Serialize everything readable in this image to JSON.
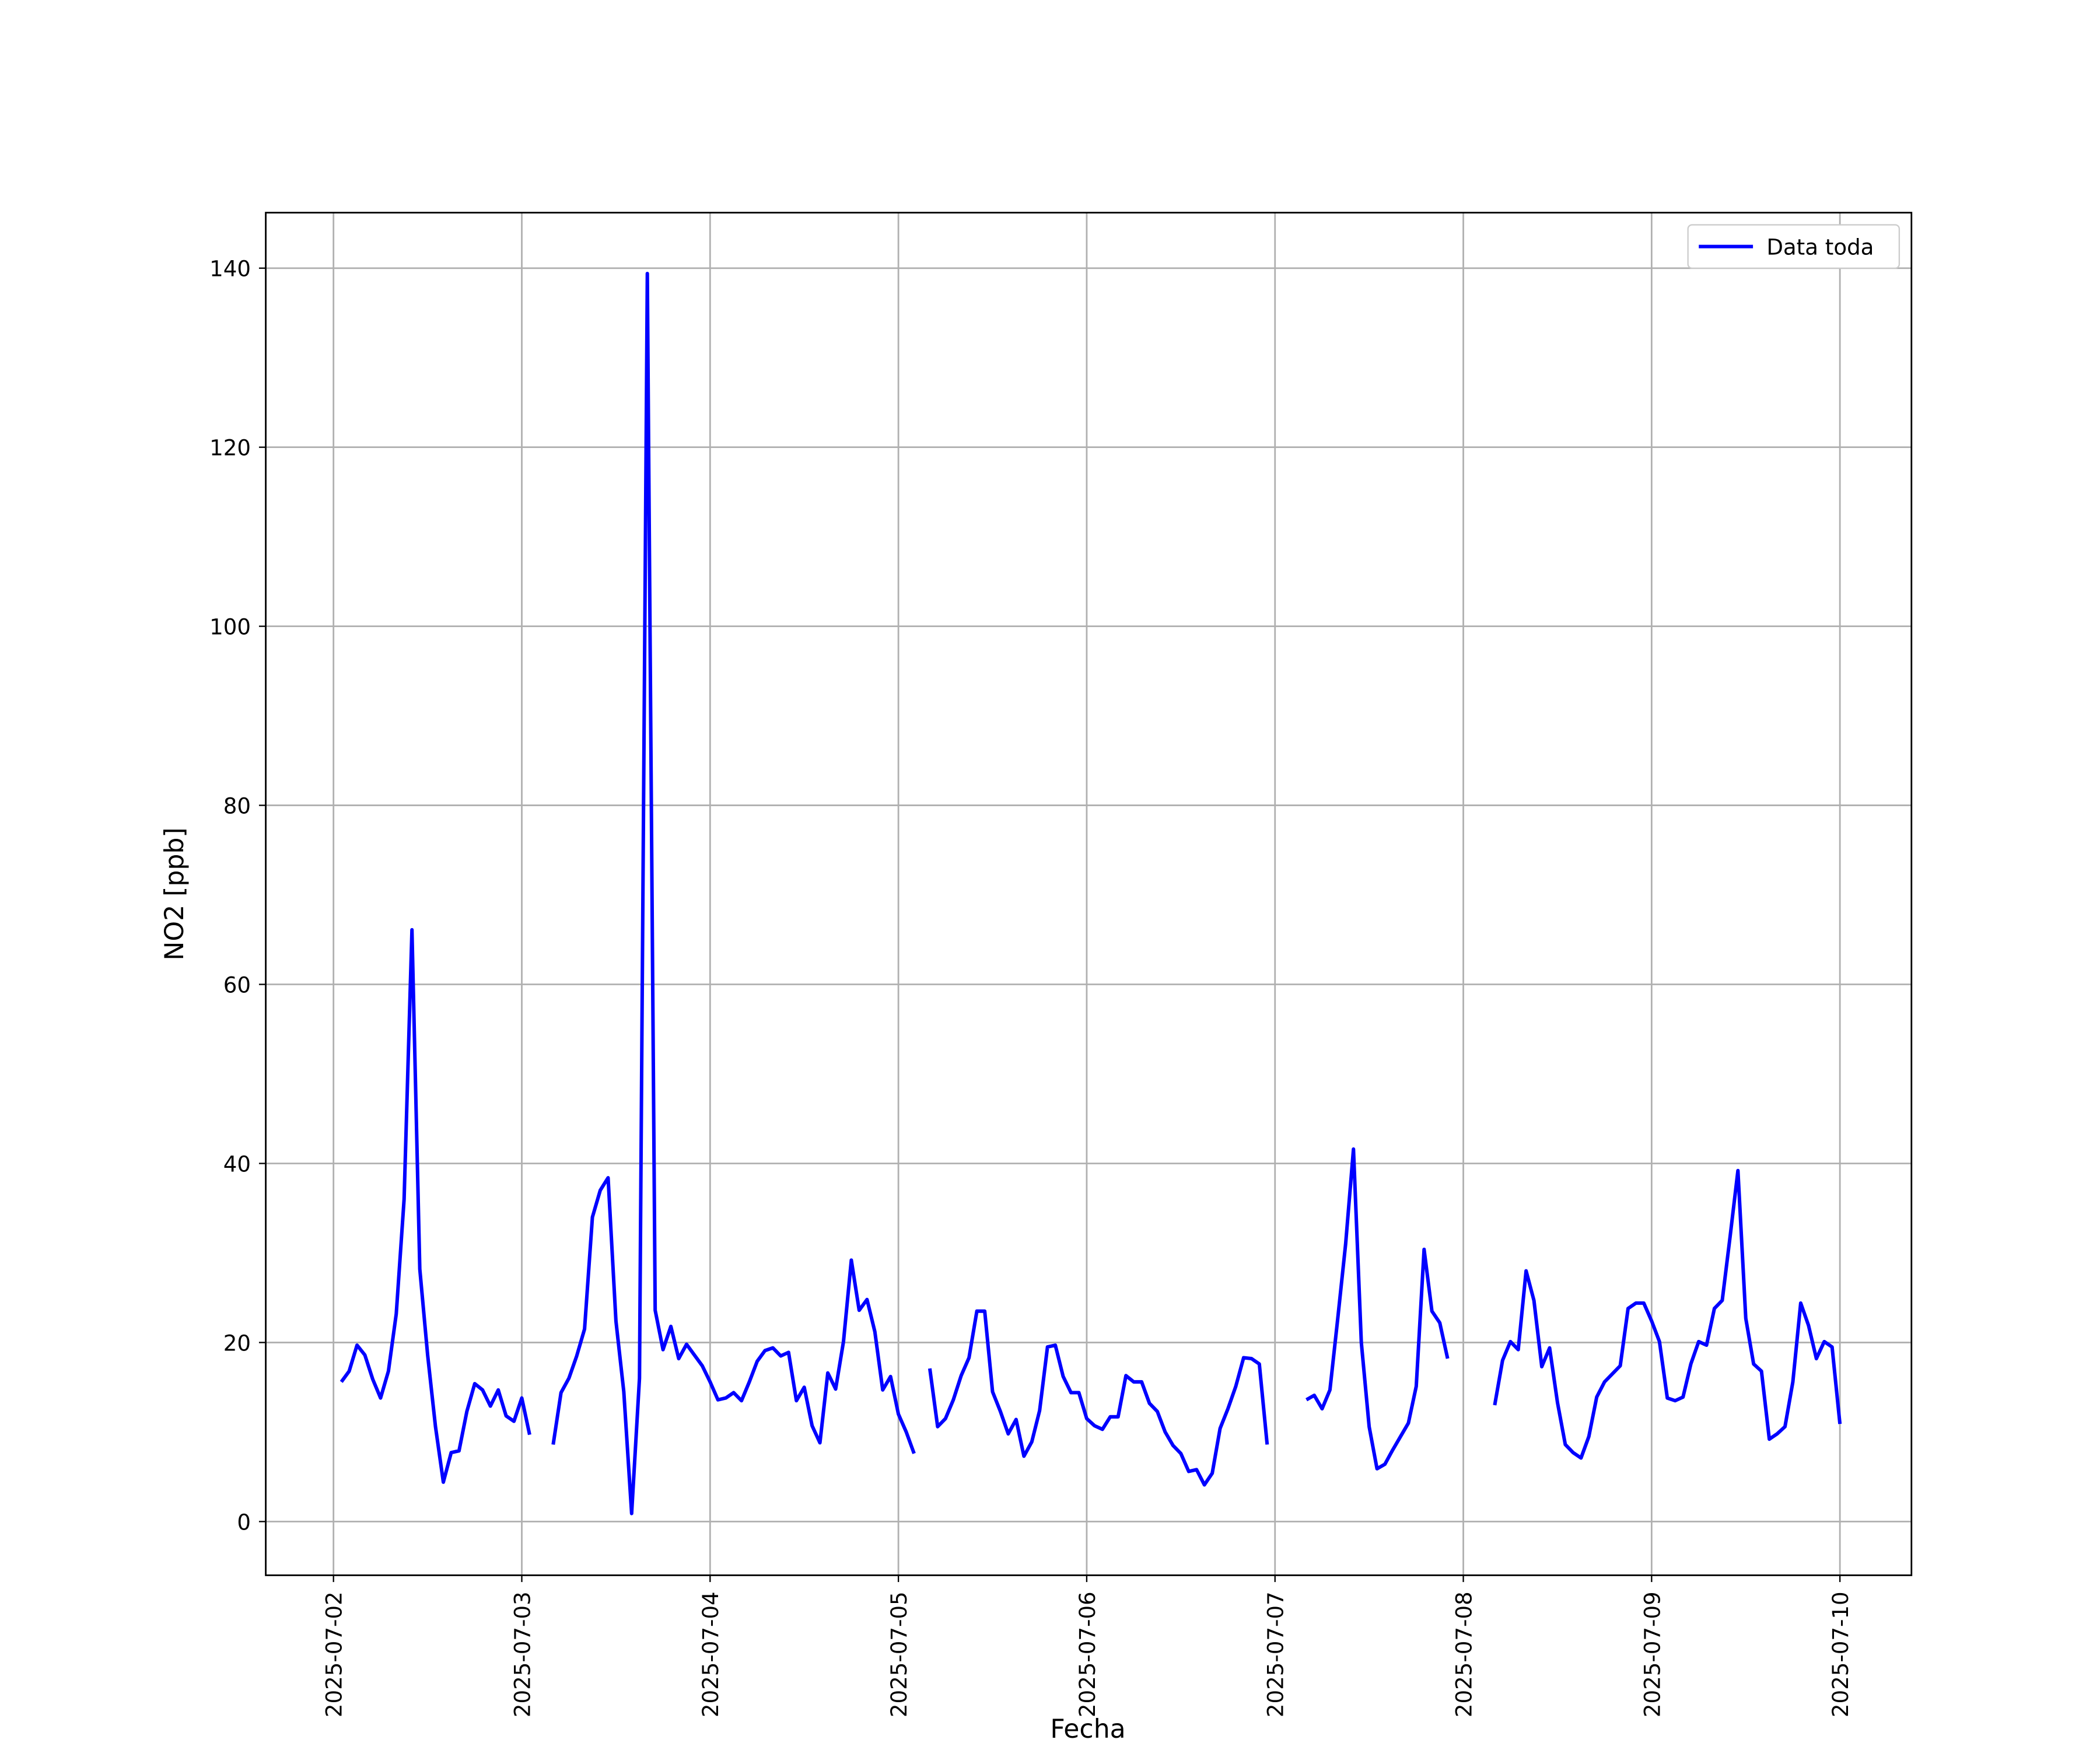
{
  "chart_data": {
    "type": "line",
    "xlabel": "Fecha",
    "ylabel": "NO2 [ppb]",
    "grid": true,
    "legend": "upper right",
    "xlim": [
      "2025-07-01 15:22",
      "2025-07-10 09:07"
    ],
    "xticks": [
      "2025-07-02",
      "2025-07-03",
      "2025-07-04",
      "2025-07-05",
      "2025-07-06",
      "2025-07-07",
      "2025-07-08",
      "2025-07-09",
      "2025-07-10"
    ],
    "ylim": [
      -6,
      146.2
    ],
    "yticks": [
      0,
      20,
      40,
      60,
      80,
      100,
      120,
      140
    ],
    "x": [
      "2025-07-02 01:00",
      "2025-07-02 02:00",
      "2025-07-02 03:00",
      "2025-07-02 04:00",
      "2025-07-02 05:00",
      "2025-07-02 06:00",
      "2025-07-02 07:00",
      "2025-07-02 08:00",
      "2025-07-02 09:00",
      "2025-07-02 10:00",
      "2025-07-02 11:00",
      "2025-07-02 12:00",
      "2025-07-02 13:00",
      "2025-07-02 14:00",
      "2025-07-02 15:00",
      "2025-07-02 16:00",
      "2025-07-02 17:00",
      "2025-07-02 18:00",
      "2025-07-02 19:00",
      "2025-07-02 20:00",
      "2025-07-02 21:00",
      "2025-07-02 22:00",
      "2025-07-02 23:00",
      "2025-07-03 00:00",
      "2025-07-03 01:00",
      "2025-07-03 02:00",
      "2025-07-03 03:00",
      "2025-07-03 04:00",
      "2025-07-03 05:00",
      "2025-07-03 06:00",
      "2025-07-03 07:00",
      "2025-07-03 08:00",
      "2025-07-03 09:00",
      "2025-07-03 10:00",
      "2025-07-03 11:00",
      "2025-07-03 12:00",
      "2025-07-03 13:00",
      "2025-07-03 14:00",
      "2025-07-03 15:00",
      "2025-07-03 16:00",
      "2025-07-03 17:00",
      "2025-07-03 18:00",
      "2025-07-03 19:00",
      "2025-07-03 20:00",
      "2025-07-03 21:00",
      "2025-07-03 22:00",
      "2025-07-03 23:00",
      "2025-07-04 00:00",
      "2025-07-04 01:00",
      "2025-07-04 02:00",
      "2025-07-04 03:00",
      "2025-07-04 04:00",
      "2025-07-04 05:00",
      "2025-07-04 06:00",
      "2025-07-04 07:00",
      "2025-07-04 08:00",
      "2025-07-04 09:00",
      "2025-07-04 10:00",
      "2025-07-04 11:00",
      "2025-07-04 12:00",
      "2025-07-04 13:00",
      "2025-07-04 14:00",
      "2025-07-04 15:00",
      "2025-07-04 16:00",
      "2025-07-04 17:00",
      "2025-07-04 18:00",
      "2025-07-04 19:00",
      "2025-07-04 20:00",
      "2025-07-04 21:00",
      "2025-07-04 22:00",
      "2025-07-04 23:00",
      "2025-07-05 00:00",
      "2025-07-05 01:00",
      "2025-07-05 02:00",
      "2025-07-05 03:00",
      "2025-07-05 04:00",
      "2025-07-05 05:00",
      "2025-07-05 06:00",
      "2025-07-05 07:00",
      "2025-07-05 08:00",
      "2025-07-05 09:00",
      "2025-07-05 10:00",
      "2025-07-05 11:00",
      "2025-07-05 12:00",
      "2025-07-05 13:00",
      "2025-07-05 14:00",
      "2025-07-05 15:00",
      "2025-07-05 16:00",
      "2025-07-05 17:00",
      "2025-07-05 18:00",
      "2025-07-05 19:00",
      "2025-07-05 20:00",
      "2025-07-05 21:00",
      "2025-07-05 22:00",
      "2025-07-05 23:00",
      "2025-07-06 00:00",
      "2025-07-06 01:00",
      "2025-07-06 02:00",
      "2025-07-06 03:00",
      "2025-07-06 04:00",
      "2025-07-06 05:00",
      "2025-07-06 06:00",
      "2025-07-06 07:00",
      "2025-07-06 08:00",
      "2025-07-06 09:00",
      "2025-07-06 10:00",
      "2025-07-06 11:00",
      "2025-07-06 12:00",
      "2025-07-06 13:00",
      "2025-07-06 14:00",
      "2025-07-06 15:00",
      "2025-07-06 16:00",
      "2025-07-06 17:00",
      "2025-07-06 18:00",
      "2025-07-06 19:00",
      "2025-07-06 20:00",
      "2025-07-06 21:00",
      "2025-07-06 22:00",
      "2025-07-06 23:00",
      "2025-07-07 00:00",
      "2025-07-07 01:00",
      "2025-07-07 02:00",
      "2025-07-07 03:00",
      "2025-07-07 04:00",
      "2025-07-07 05:00",
      "2025-07-07 06:00",
      "2025-07-07 07:00",
      "2025-07-07 08:00",
      "2025-07-07 09:00",
      "2025-07-07 10:00",
      "2025-07-07 11:00",
      "2025-07-07 12:00",
      "2025-07-07 13:00",
      "2025-07-07 14:00",
      "2025-07-07 15:00",
      "2025-07-07 16:00",
      "2025-07-07 17:00",
      "2025-07-07 18:00",
      "2025-07-07 19:00",
      "2025-07-07 20:00",
      "2025-07-07 21:00",
      "2025-07-07 22:00",
      "2025-07-07 23:00",
      "2025-07-08 00:00",
      "2025-07-08 01:00",
      "2025-07-08 02:00",
      "2025-07-08 03:00",
      "2025-07-08 04:00",
      "2025-07-08 05:00",
      "2025-07-08 06:00",
      "2025-07-08 07:00",
      "2025-07-08 08:00",
      "2025-07-08 09:00",
      "2025-07-08 10:00",
      "2025-07-08 11:00",
      "2025-07-08 12:00",
      "2025-07-08 13:00",
      "2025-07-08 14:00",
      "2025-07-08 15:00",
      "2025-07-08 16:00",
      "2025-07-08 17:00",
      "2025-07-08 18:00",
      "2025-07-08 19:00",
      "2025-07-08 20:00",
      "2025-07-08 21:00",
      "2025-07-08 22:00",
      "2025-07-08 23:00",
      "2025-07-09 00:00",
      "2025-07-09 01:00",
      "2025-07-09 02:00",
      "2025-07-09 03:00",
      "2025-07-09 04:00",
      "2025-07-09 05:00",
      "2025-07-09 06:00",
      "2025-07-09 07:00",
      "2025-07-09 08:00",
      "2025-07-09 09:00",
      "2025-07-09 10:00",
      "2025-07-09 11:00",
      "2025-07-09 12:00",
      "2025-07-09 13:00",
      "2025-07-09 14:00",
      "2025-07-09 15:00",
      "2025-07-09 16:00",
      "2025-07-09 17:00",
      "2025-07-09 18:00",
      "2025-07-09 19:00",
      "2025-07-09 20:00",
      "2025-07-09 21:00",
      "2025-07-09 22:00",
      "2025-07-09 23:00",
      "2025-07-10 00:00"
    ],
    "series": [
      {
        "name": "Data toda",
        "color": "#0000ff",
        "values": [
          15.6,
          16.8,
          19.7,
          18.6,
          15.9,
          13.8,
          16.8,
          23.2,
          36,
          66.1,
          28.2,
          18.6,
          10.6,
          4.4,
          7.7,
          7.9,
          12.3,
          15.4,
          14.7,
          12.9,
          14.7,
          11.8,
          11.2,
          13.8,
          9.7,
          null,
          null,
          8.6,
          14.4,
          16,
          18.5,
          21.5,
          34,
          37,
          38.4,
          22.4,
          14.5,
          0.9,
          16,
          139.4,
          23.6,
          19.2,
          21.8,
          18.2,
          19.8,
          18.6,
          17.4,
          15.6,
          13.6,
          13.8,
          14.4,
          13.5,
          15.6,
          17.9,
          19.1,
          19.4,
          18.5,
          18.9,
          13.5,
          15,
          10.7,
          8.8,
          16.6,
          14.8,
          20.1,
          29.2,
          23.6,
          24.8,
          21.2,
          14.7,
          16.2,
          12,
          10,
          7.6,
          null,
          17.1,
          10.6,
          11.5,
          13.6,
          16.3,
          18.3,
          23.5,
          23.5,
          14.5,
          12.3,
          9.8,
          11.4,
          7.3,
          8.9,
          12.4,
          19.5,
          19.7,
          16.2,
          14.4,
          14.4,
          11.5,
          10.7,
          10.3,
          11.7,
          11.7,
          16.3,
          15.6,
          15.6,
          13.2,
          12.3,
          10,
          8.5,
          7.6,
          5.6,
          5.8,
          4.1,
          5.4,
          10.4,
          12.6,
          15.1,
          18.3,
          18.2,
          17.6,
          8.6,
          null,
          null,
          null,
          null,
          13.6,
          14.1,
          12.6,
          14.7,
          22.7,
          31,
          41.6,
          20,
          10.6,
          5.9,
          6.4,
          8,
          9.5,
          11,
          15.1,
          30.4,
          23.5,
          22.2,
          18.2,
          null,
          null,
          null,
          null,
          null,
          13,
          18,
          20.1,
          19.2,
          28,
          24.7,
          17.3,
          19.4,
          13.3,
          8.6,
          7.7,
          7.1,
          9.5,
          13.9,
          15.6,
          16.5,
          17.4,
          23.8,
          24.4,
          24.4,
          22.4,
          20.1,
          13.8,
          13.5,
          13.9,
          17.6,
          20.1,
          19.7,
          23.8,
          24.7,
          31.8,
          39.2,
          22.7,
          17.6,
          16.8,
          9.2,
          9.8,
          10.6,
          15.6,
          24.4,
          21.9,
          18.2,
          20.1,
          19.5,
          10.9
        ]
      }
    ]
  }
}
